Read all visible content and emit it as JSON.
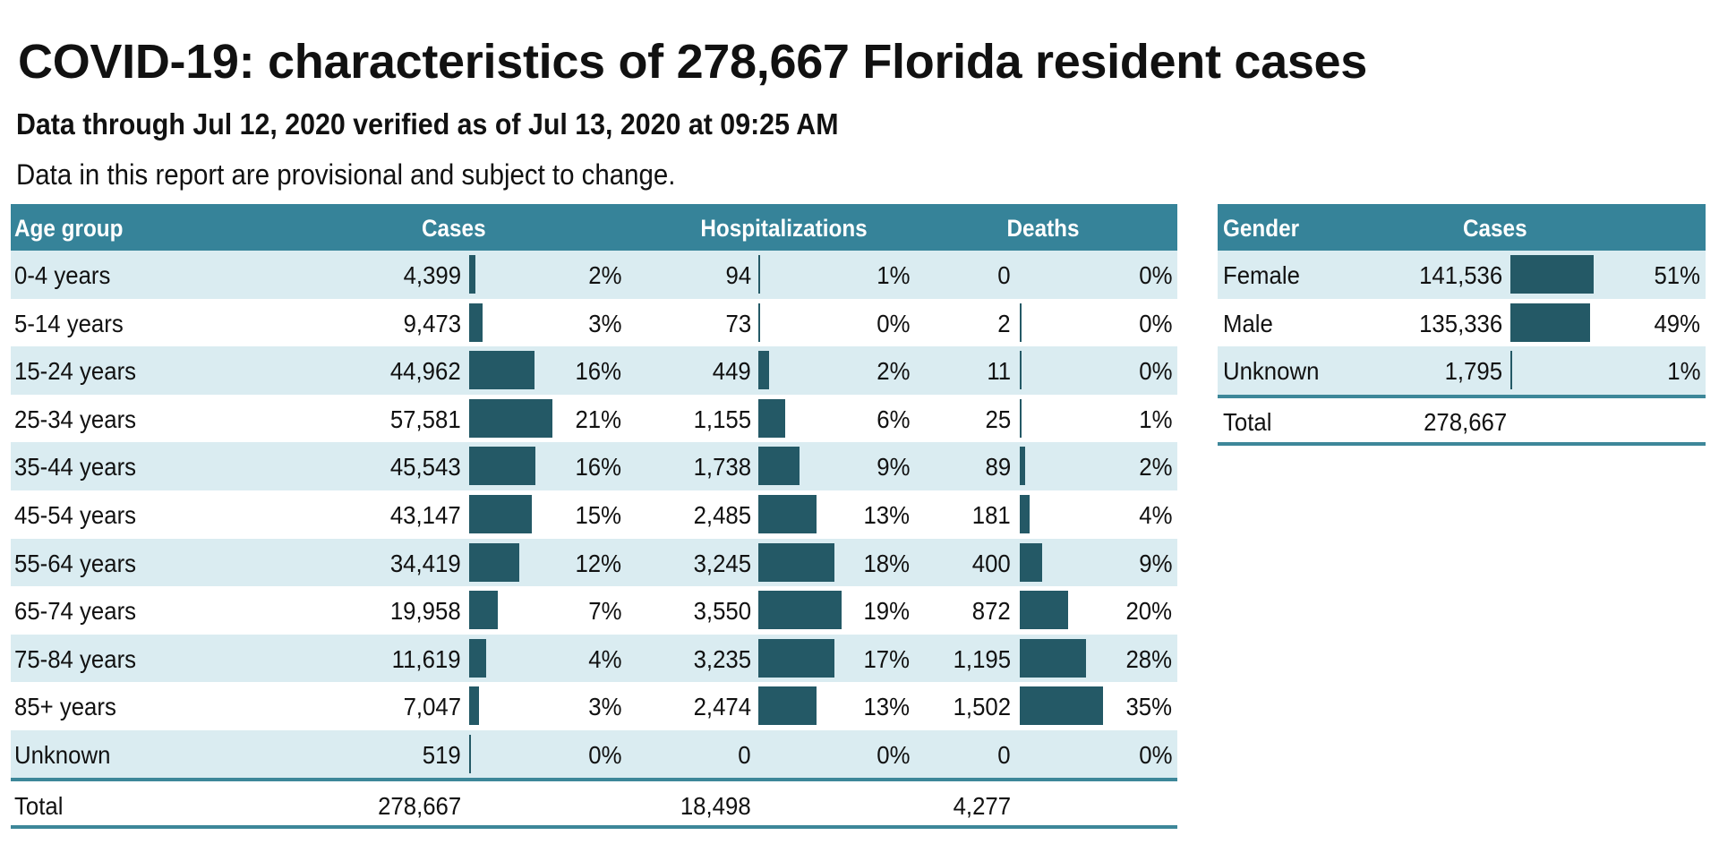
{
  "header": {
    "title": "COVID-19: characteristics of 278,667 Florida resident cases",
    "subtitle": "Data through Jul 12, 2020 verified as of Jul 13, 2020 at 09:25 AM",
    "note": "Data in this report are provisional and subject to change."
  },
  "colors": {
    "header_bg": "#368399",
    "alt_row_bg": "#daecf1",
    "bar": "#245966",
    "rule": "#3d8799"
  },
  "age_table": {
    "columns": {
      "age_group": "Age group",
      "cases": "Cases",
      "hospitalizations": "Hospitalizations",
      "deaths": "Deaths"
    },
    "rows": [
      {
        "label": "0-4 years",
        "cases": "4,399",
        "cases_pct": "2%",
        "hosp": "94",
        "hosp_pct": "1%",
        "deaths": "0",
        "deaths_pct": "0%"
      },
      {
        "label": "5-14 years",
        "cases": "9,473",
        "cases_pct": "3%",
        "hosp": "73",
        "hosp_pct": "0%",
        "deaths": "2",
        "deaths_pct": "0%"
      },
      {
        "label": "15-24 years",
        "cases": "44,962",
        "cases_pct": "16%",
        "hosp": "449",
        "hosp_pct": "2%",
        "deaths": "11",
        "deaths_pct": "0%"
      },
      {
        "label": "25-34 years",
        "cases": "57,581",
        "cases_pct": "21%",
        "hosp": "1,155",
        "hosp_pct": "6%",
        "deaths": "25",
        "deaths_pct": "1%"
      },
      {
        "label": "35-44 years",
        "cases": "45,543",
        "cases_pct": "16%",
        "hosp": "1,738",
        "hosp_pct": "9%",
        "deaths": "89",
        "deaths_pct": "2%"
      },
      {
        "label": "45-54 years",
        "cases": "43,147",
        "cases_pct": "15%",
        "hosp": "2,485",
        "hosp_pct": "13%",
        "deaths": "181",
        "deaths_pct": "4%"
      },
      {
        "label": "55-64 years",
        "cases": "34,419",
        "cases_pct": "12%",
        "hosp": "3,245",
        "hosp_pct": "18%",
        "deaths": "400",
        "deaths_pct": "9%"
      },
      {
        "label": "65-74 years",
        "cases": "19,958",
        "cases_pct": "7%",
        "hosp": "3,550",
        "hosp_pct": "19%",
        "deaths": "872",
        "deaths_pct": "20%"
      },
      {
        "label": "75-84 years",
        "cases": "11,619",
        "cases_pct": "4%",
        "hosp": "3,235",
        "hosp_pct": "17%",
        "deaths": "1,195",
        "deaths_pct": "28%"
      },
      {
        "label": "85+ years",
        "cases": "7,047",
        "cases_pct": "3%",
        "hosp": "2,474",
        "hosp_pct": "13%",
        "deaths": "1,502",
        "deaths_pct": "35%"
      },
      {
        "label": "Unknown",
        "cases": "519",
        "cases_pct": "0%",
        "hosp": "0",
        "hosp_pct": "0%",
        "deaths": "0",
        "deaths_pct": "0%"
      }
    ],
    "total": {
      "label": "Total",
      "cases": "278,667",
      "hosp": "18,498",
      "deaths": "4,277"
    }
  },
  "gender_table": {
    "columns": {
      "gender": "Gender",
      "cases": "Cases"
    },
    "rows": [
      {
        "label": "Female",
        "cases": "141,536",
        "pct": "51%"
      },
      {
        "label": "Male",
        "cases": "135,336",
        "pct": "49%"
      },
      {
        "label": "Unknown",
        "cases": "1,795",
        "pct": "1%"
      }
    ],
    "total": {
      "label": "Total",
      "cases": "278,667"
    }
  }
}
